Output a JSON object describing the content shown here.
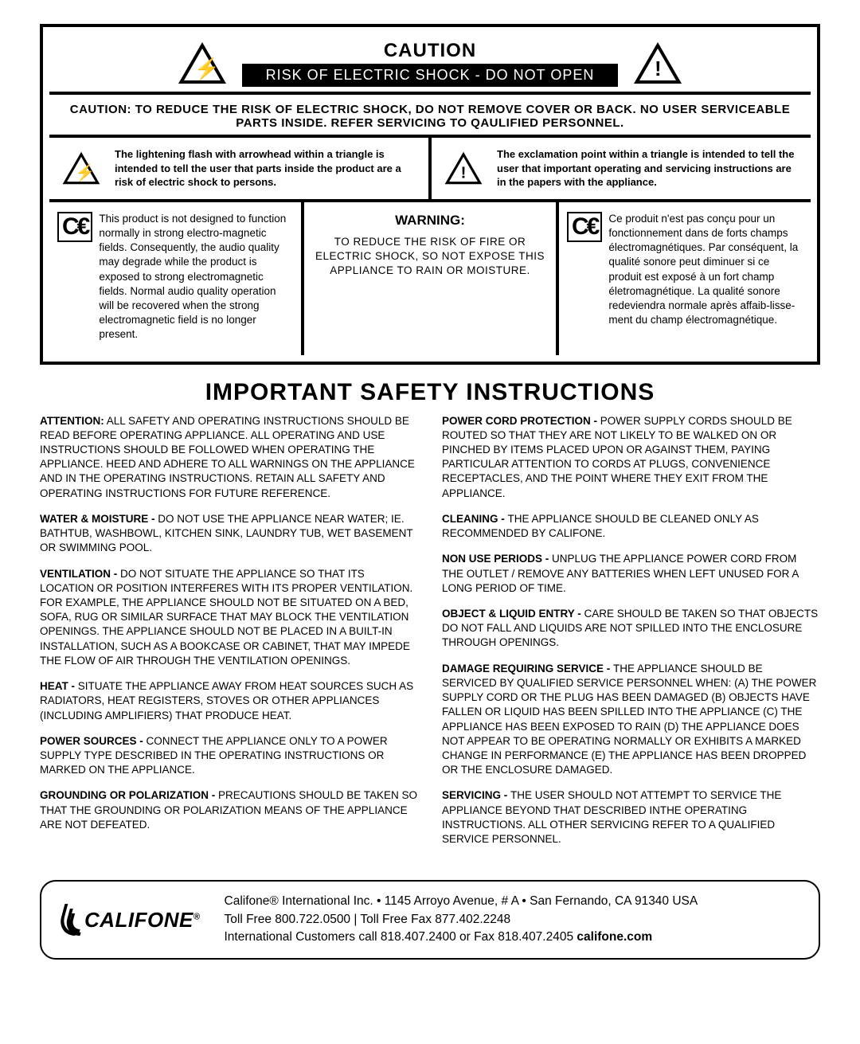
{
  "caution": {
    "title": "CAUTION",
    "subtitle": "RISK OF ELECTRIC SHOCK - DO NOT OPEN",
    "body": "CAUTION: TO REDUCE THE RISK OF ELECTRIC SHOCK, DO NOT REMOVE COVER OR BACK. NO USER SERVICEABLE PARTS INSIDE. REFER SERVICING TO QAULIFIED PERSONNEL."
  },
  "symbols": {
    "bolt": "The lightening flash with arrowhead within a triangle is intended to tell the user that parts inside the product are a risk of electric shock to persons.",
    "exclaim": "The exclamation point within a triangle is intended to tell the user that important operating and servicing instructions are in the papers with the appliance."
  },
  "warning": {
    "title": "WARNING:",
    "body": "TO REDUCE THE RISK OF FIRE OR ELECTRIC SHOCK, SO NOT EXPOSE  THIS APPLIANCE TO RAIN OR MOISTURE.",
    "ce_en": "This product is not designed to function normally in strong electro-magnetic fields. Consequently, the audio quality may degrade while the product is exposed to strong electromagnetic fields. Normal audio quality operation will be recovered when the strong electromagnetic field is no longer present.",
    "ce_fr": "Ce produit n'est pas conçu pour un fonctionnement dans de forts champs électromagnétiques. Par conséquent, la qualité sonore peut diminuer si ce produit est exposé à un fort champ életromagnétique. La qualité sonore redeviendra normale après affaib-lisse-ment du champ électromagnétique."
  },
  "safety": {
    "heading": "IMPORTANT SAFETY INSTRUCTIONS",
    "left": [
      {
        "b": "ATTENTION:",
        "t": " ALL SAFETY AND OPERATING INSTRUCTIONS SHOULD BE READ BEFORE OPERATING APPLIANCE. ALL OPERATING AND USE INSTRUCTIONS SHOULD BE FOLLOWED WHEN OPERATING THE APPLIANCE. HEED AND ADHERE TO ALL WARNINGS ON THE APPLIANCE AND IN THE OPERATING INSTRUCTIONS. RETAIN ALL SAFETY AND OPERATING INSTRUCTIONS FOR FUTURE REFERENCE."
      },
      {
        "b": "WATER & MOISTURE - ",
        "t": "DO NOT USE THE APPLIANCE NEAR WATER; IE. BATHTUB, WASHBOWL, KITCHEN SINK, LAUNDRY TUB, WET BASEMENT OR SWIMMING POOL."
      },
      {
        "b": "VENTILATION - ",
        "t": "DO NOT SITUATE THE APPLIANCE SO THAT ITS LOCATION OR POSITION INTERFERES WITH ITS PROPER VENTILATION. FOR EXAMPLE, THE APPLIANCE SHOULD NOT BE SITUATED ON A BED, SOFA, RUG OR SIMILAR SURFACE THAT MAY BLOCK THE VENTILATION OPENINGS. THE APPLIANCE SHOULD NOT BE PLACED IN A BUILT-IN INSTALLATION, SUCH AS A BOOKCASE OR CABINET, THAT MAY IMPEDE THE FLOW OF AIR THROUGH THE VENTILATION OPENINGS."
      },
      {
        "b": "HEAT - ",
        "t": "SITUATE THE APPLIANCE AWAY FROM HEAT SOURCES SUCH AS RADIATORS, HEAT REGISTERS, STOVES OR OTHER APPLIANCES (INCLUDING AMPLIFIERS) THAT PRODUCE HEAT."
      },
      {
        "b": "POWER SOURCES - ",
        "t": "CONNECT THE APPLIANCE ONLY TO A POWER SUPPLY TYPE DESCRIBED IN THE OPERATING INSTRUCTIONS OR MARKED ON THE APPLIANCE."
      },
      {
        "b": "GROUNDING OR POLARIZATION - ",
        "t": "PRECAUTIONS SHOULD BE TAKEN SO THAT THE GROUNDING OR POLARIZATION MEANS OF THE APPLIANCE ARE NOT DEFEATED."
      }
    ],
    "right": [
      {
        "b": "POWER CORD PROTECTION - ",
        "t": "POWER SUPPLY CORDS SHOULD BE ROUTED SO THAT THEY ARE NOT LIKELY TO BE WALKED ON OR PINCHED BY ITEMS PLACED UPON OR AGAINST THEM, PAYING PARTICULAR ATTENTION TO CORDS AT PLUGS, CONVENIENCE RECEPTACLES, AND THE POINT WHERE THEY EXIT FROM THE APPLIANCE."
      },
      {
        "b": "CLEANING - ",
        "t": "THE APPLIANCE SHOULD BE CLEANED ONLY AS RECOMMENDED BY CALIFONE."
      },
      {
        "b": "NON USE PERIODS - ",
        "t": "UNPLUG THE APPLIANCE POWER CORD FROM THE OUTLET / REMOVE ANY BATTERIES WHEN LEFT UNUSED FOR A LONG PERIOD OF TIME."
      },
      {
        "b": "OBJECT & LIQUID ENTRY - ",
        "t": "CARE SHOULD BE TAKEN SO THAT OBJECTS DO NOT FALL AND LIQUIDS ARE NOT SPILLED INTO THE ENCLOSURE THROUGH OPENINGS."
      },
      {
        "b": "DAMAGE REQUIRING SERVICE - ",
        "t": "THE APPLIANCE SHOULD BE SERVICED BY QUALIFIED SERVICE PERSONNEL WHEN: (A) THE POWER SUPPLY CORD OR THE PLUG HAS BEEN DAMAGED (B) OBJECTS HAVE FALLEN OR LIQUID HAS BEEN SPILLED INTO THE APPLIANCE (C) THE APPLIANCE HAS BEEN EXPOSED TO RAIN (D) THE APPLIANCE DOES NOT APPEAR TO BE OPERATING NORMALLY OR EXHIBITS A MARKED CHANGE IN PERFORMANCE (E) THE APPLIANCE HAS BEEN DROPPED OR THE ENCLOSURE DAMAGED."
      },
      {
        "b": "SERVICING - ",
        "t": "THE USER SHOULD NOT ATTEMPT TO SERVICE THE APPLIANCE BEYOND THAT DESCRIBED INTHE OPERATING INSTRUCTIONS. ALL OTHER SERVICING REFER TO A QUALIFIED SERVICE PERSONNEL."
      }
    ]
  },
  "footer": {
    "brand": "CALIFONE",
    "line1": "Califone® International Inc. • 1145 Arroyo Avenue, # A • San Fernando, CA 91340 USA",
    "line2": "Toll Free 800.722.0500 | Toll Free Fax 877.402.2248",
    "line3a": "International Customers call 818.407.2400 or Fax 818.407.2405  ",
    "line3b": "califone.com"
  },
  "glyphs": {
    "bolt": "⚡",
    "exclaim": "!"
  }
}
